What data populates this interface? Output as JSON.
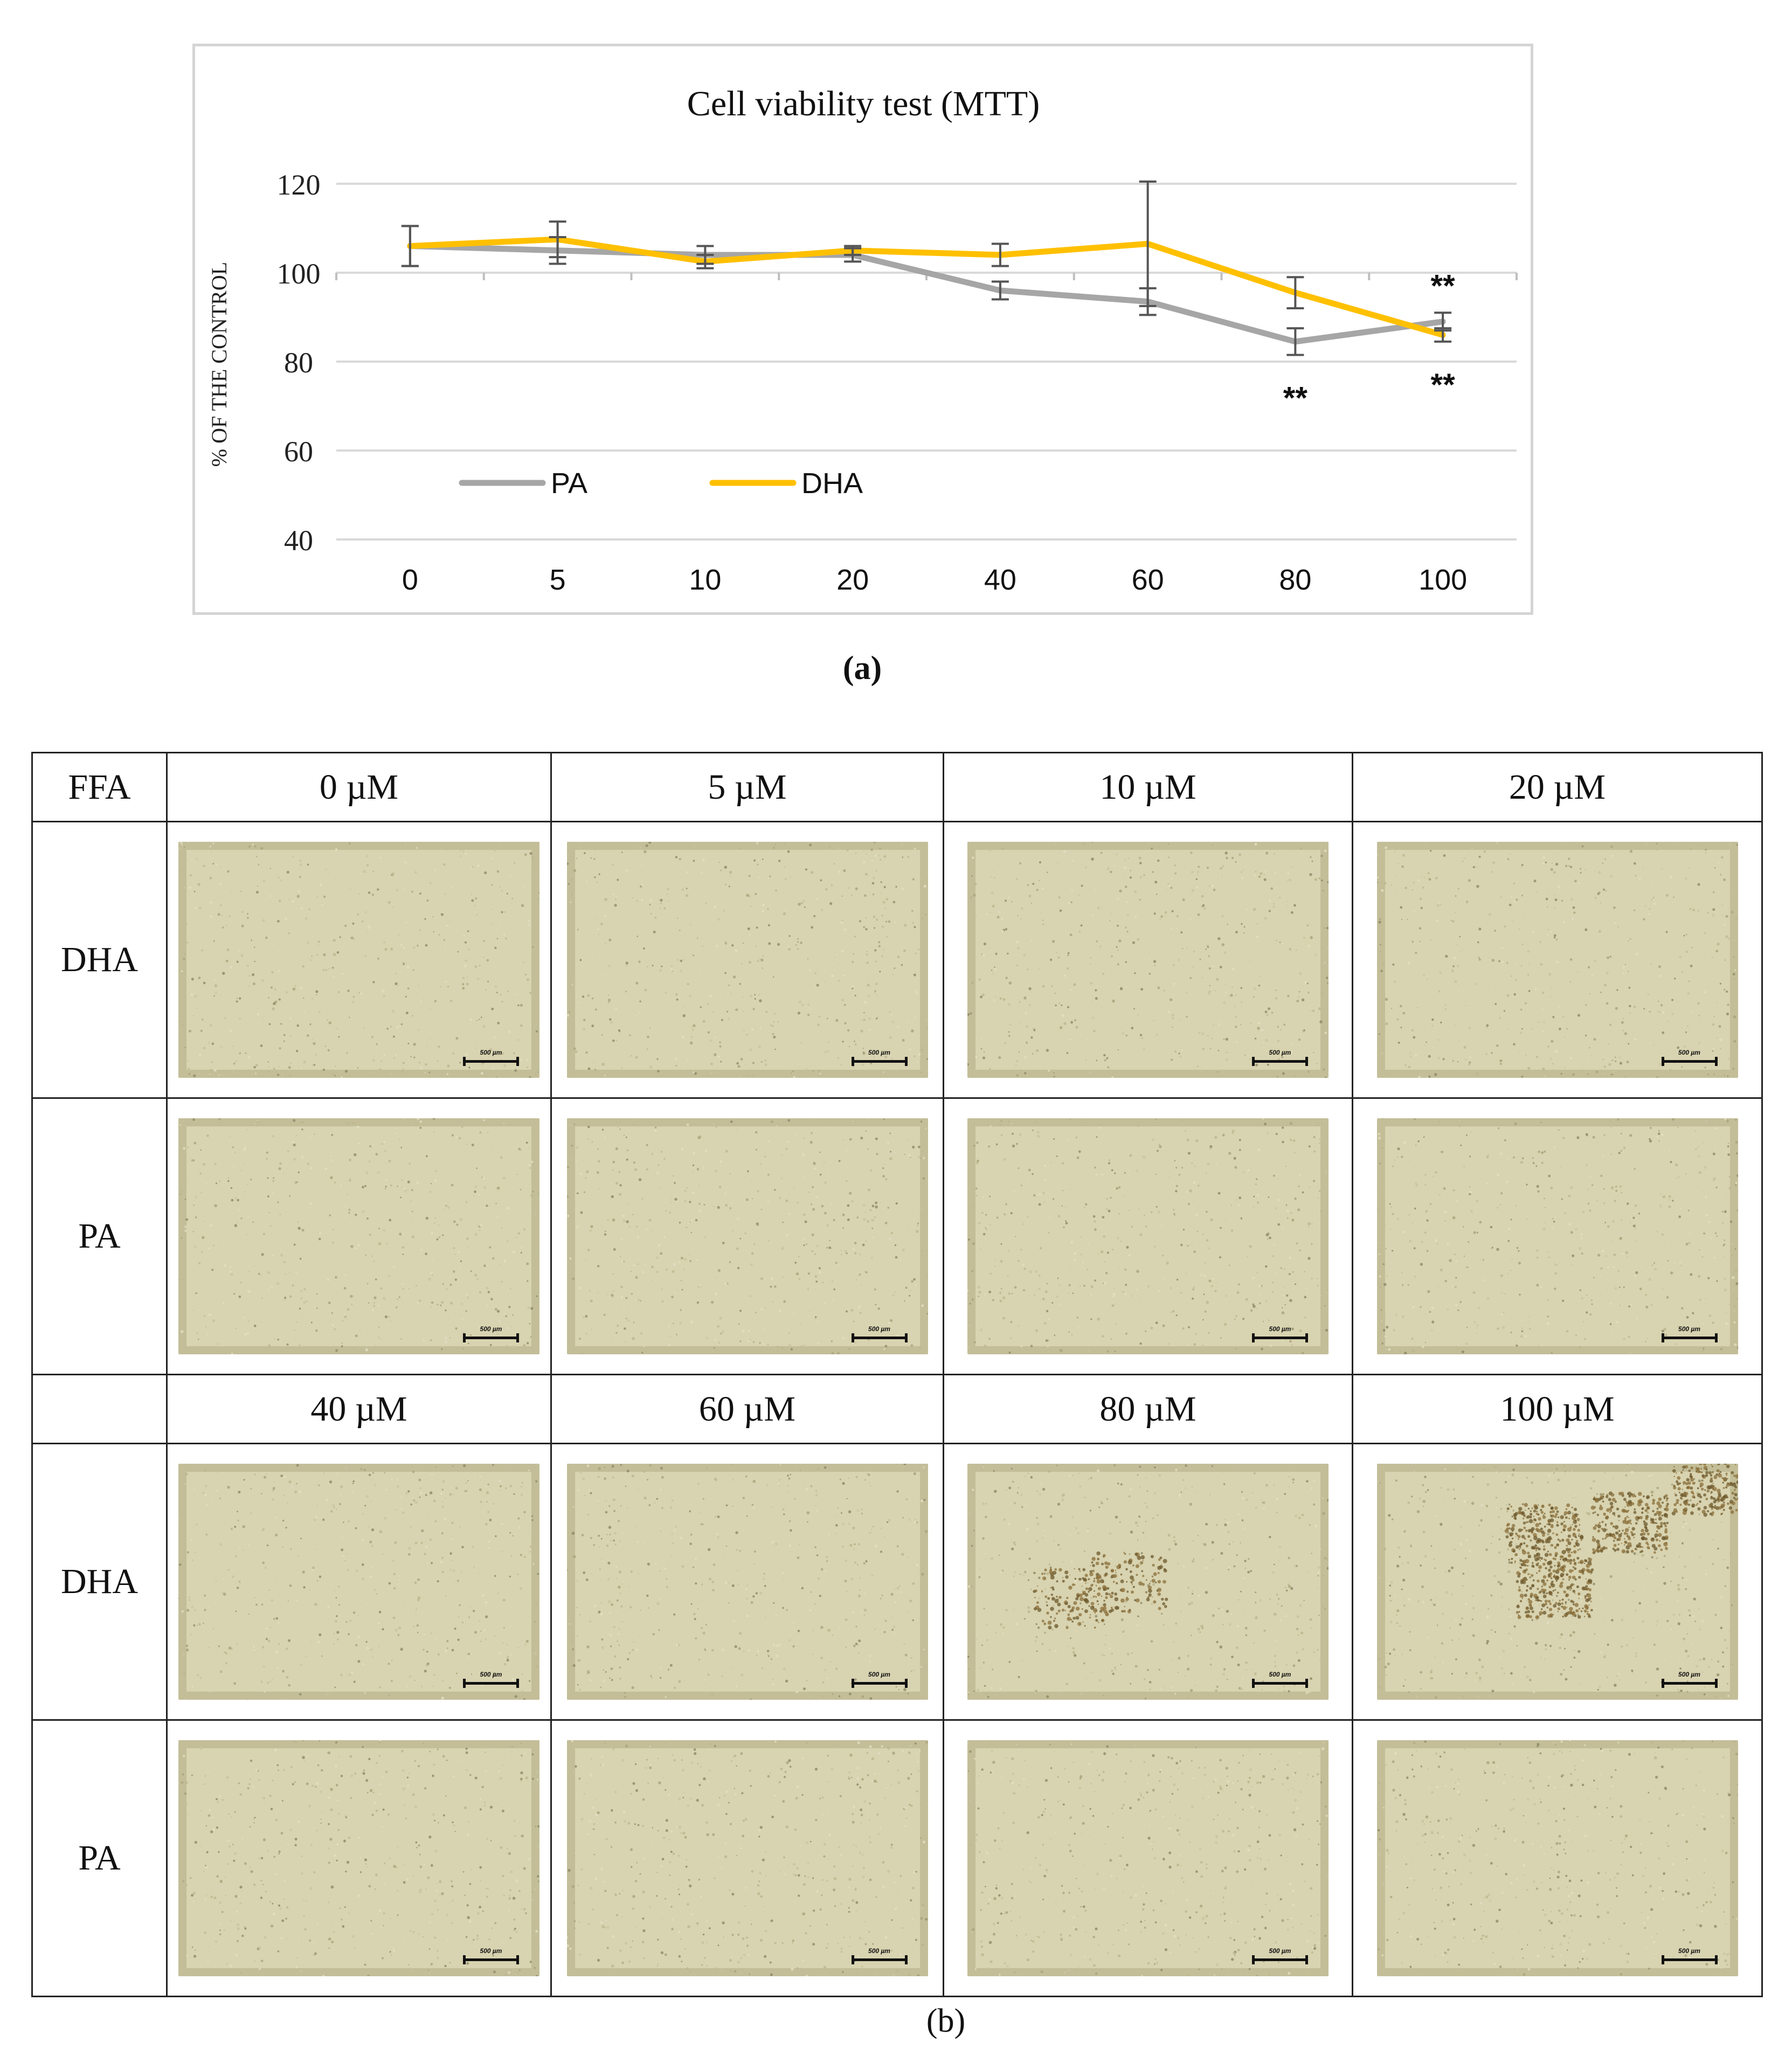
{
  "chart_data": {
    "type": "line",
    "title": "Cell viability test (MTT)",
    "xlabel": "",
    "ylabel": "% OF THE CONTROL",
    "categories": [
      "0",
      "5",
      "10",
      "20",
      "40",
      "60",
      "80",
      "100"
    ],
    "ylim": [
      40,
      120
    ],
    "yticks": [
      40,
      60,
      80,
      100,
      120
    ],
    "grid": true,
    "legend_position": "lower-left inside",
    "series": [
      {
        "name": "PA",
        "color": "#a6a6a6",
        "values": [
          106,
          105,
          104,
          104,
          96,
          93.5,
          84.5,
          89
        ],
        "error": [
          4.5,
          3,
          2,
          1.5,
          2,
          3,
          3,
          2
        ]
      },
      {
        "name": "DHA",
        "color": "#ffc000",
        "values": [
          106,
          107.5,
          102.5,
          105,
          104,
          106.5,
          95.5,
          86
        ],
        "error": [
          4.5,
          4,
          1.5,
          1,
          2.5,
          14,
          3.5,
          1.5
        ]
      }
    ],
    "annotations": [
      {
        "text": "**",
        "category": "80",
        "position": "below",
        "series": "PA"
      },
      {
        "text": "**",
        "category": "100",
        "position": "above",
        "series": "PA"
      },
      {
        "text": "**",
        "category": "100",
        "position": "below",
        "series": "DHA"
      }
    ]
  },
  "captions": {
    "a": "(a)",
    "b": "(b)"
  },
  "table": {
    "corner_label": "FFA",
    "row_labels": {
      "dha": "DHA",
      "pa": "PA"
    },
    "top_concentrations": [
      "0 µM",
      "5 µM",
      "10 µM",
      "20 µM"
    ],
    "bottom_concentrations": [
      "40 µM",
      "60 µM",
      "80 µM",
      "100 µM"
    ],
    "scale_bar_label": "500 µm"
  }
}
